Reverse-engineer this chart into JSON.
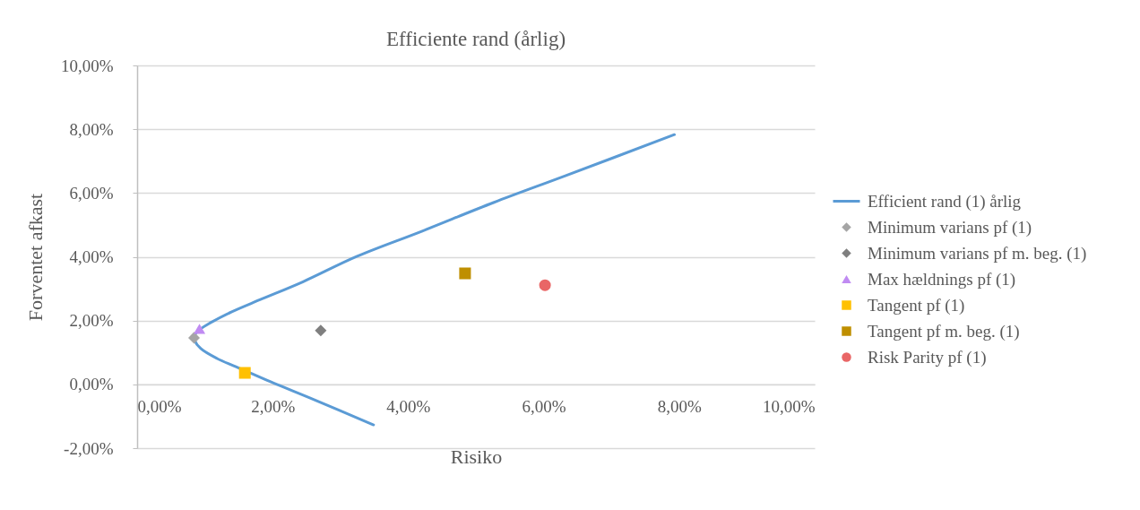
{
  "chart_data": {
    "type": "scatter",
    "title": "Efficiente rand (årlig)",
    "xlabel": "Risiko",
    "ylabel": "Forventet afkast",
    "xlim": [
      0,
      10
    ],
    "ylim": [
      -2,
      10
    ],
    "xticks": [
      {
        "value": 0,
        "label": "0,00%"
      },
      {
        "value": 2,
        "label": "2,00%"
      },
      {
        "value": 4,
        "label": "4,00%"
      },
      {
        "value": 6,
        "label": "6,00%"
      },
      {
        "value": 8,
        "label": "8,00%"
      },
      {
        "value": 10,
        "label": "10,00%"
      }
    ],
    "yticks": [
      {
        "value": -2,
        "label": "-2,00%"
      },
      {
        "value": 0,
        "label": "0,00%"
      },
      {
        "value": 2,
        "label": "2,00%"
      },
      {
        "value": 4,
        "label": "4,00%"
      },
      {
        "value": 6,
        "label": "6,00%"
      },
      {
        "value": 8,
        "label": "8,00%"
      },
      {
        "value": 10,
        "label": "10,00%"
      }
    ],
    "grid": "y",
    "legend": "right",
    "series": [
      {
        "name": "Efficient rand (1) årlig",
        "type": "line",
        "color": "#5b9bd5",
        "marker": "none",
        "line_style": "solid",
        "x": [
          3.49,
          2.61,
          1.97,
          1.55,
          1.18,
          0.94,
          0.85,
          0.84,
          0.92,
          1.08,
          1.39,
          1.82,
          2.45,
          3.24,
          4.2,
          5.26,
          6.32,
          7.93
        ],
        "values": [
          -1.27,
          -0.48,
          0.08,
          0.47,
          0.81,
          1.12,
          1.37,
          1.52,
          1.71,
          1.93,
          2.27,
          2.66,
          3.22,
          4.01,
          4.8,
          5.7,
          6.54,
          7.83
        ]
      },
      {
        "name": "Minimum varians pf (1)",
        "color": "#a5a5a5",
        "marker": "diamond",
        "x": [
          0.84
        ],
        "values": [
          1.46
        ]
      },
      {
        "name": "Minimum varians pf m. beg. (1)",
        "color": "#7f7f7f",
        "marker": "diamond",
        "x": [
          2.71
        ],
        "values": [
          1.69
        ]
      },
      {
        "name": "Max hældnings pf (1)",
        "color": "#c08bf2",
        "marker": "triangle",
        "x": [
          0.92
        ],
        "values": [
          1.74
        ]
      },
      {
        "name": "Tangent pf (1)",
        "color": "#ffc000",
        "marker": "square",
        "x": [
          1.59
        ],
        "values": [
          0.36
        ]
      },
      {
        "name": "Tangent pf m. beg. (1)",
        "color": "#bf8f00",
        "marker": "square",
        "x": [
          4.84
        ],
        "values": [
          3.48
        ]
      },
      {
        "name": "Risk Parity pf (1)",
        "color": "#e96666",
        "marker": "circle",
        "x": [
          6.02
        ],
        "values": [
          3.11
        ]
      }
    ]
  }
}
